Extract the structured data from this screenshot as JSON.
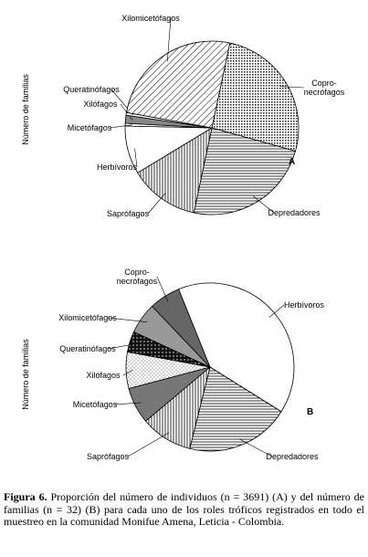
{
  "charts": [
    {
      "type": "pie",
      "axis_label": "Número de familias",
      "panel": "A",
      "categories": [
        "Copro-necrófagos",
        "Depredadores",
        "Saprófagos",
        "Herbívoros",
        "Micetófagos",
        "Xilófagos",
        "Queratinófagos",
        "Xilomicetófagos"
      ],
      "values": [
        26,
        24,
        13,
        9,
        0.5,
        1.5,
        0.5,
        25.5
      ]
    },
    {
      "type": "pie",
      "axis_label": "Número de familias",
      "panel": "B",
      "categories": [
        "Herbívoros",
        "Depredadores",
        "Saprófagos",
        "Micetófagos",
        "Xilófagos",
        "Queratinófagos",
        "Xilomicetófagos",
        "Copro-necrófagos"
      ],
      "values": [
        40,
        20,
        10,
        7,
        7,
        4,
        6,
        6
      ]
    }
  ],
  "caption": {
    "label": "Figura 6.",
    "text": "Proporción del número de individuos (n = 3691) (A) y del número de familias (n = 32) (B) para cada uno de los roles tróficos registrados en todo el muestreo en la comunidad Monifue Amena, Leticia - Colombia."
  }
}
